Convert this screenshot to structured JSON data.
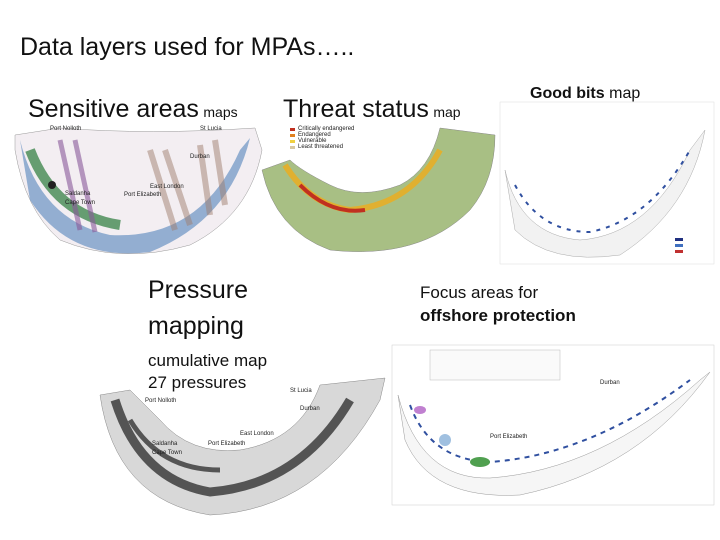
{
  "title": "Data layers used for MPAs…..",
  "sensitive_areas": {
    "heading": "Sensitive areas",
    "note": "maps",
    "labels": [
      "Port Nolloth",
      "St Lucia",
      "Durban",
      "Saldanha",
      "Cape Town",
      "Port Elizabeth",
      "East London"
    ]
  },
  "threat_status": {
    "heading": "Threat status",
    "note": "map",
    "legend": [
      "Critically endangered",
      "Endangered",
      "Vulnerable",
      "Least threatened"
    ]
  },
  "good_bits": {
    "heading": "Good bits",
    "note": "map"
  },
  "pressure_mapping": {
    "heading": [
      "Pressure",
      "mapping"
    ],
    "note": [
      "cumulative map",
      "27 pressures"
    ],
    "labels": [
      "St Lucia",
      "Port Nolloth",
      "Durban",
      "East London",
      "Saldanha",
      "Cape Town",
      "Port Elizabeth"
    ]
  },
  "focus_areas": {
    "heading": [
      "Focus areas for",
      "offshore protection"
    ],
    "labels": [
      "Durban",
      "Port Elizabeth"
    ]
  }
}
